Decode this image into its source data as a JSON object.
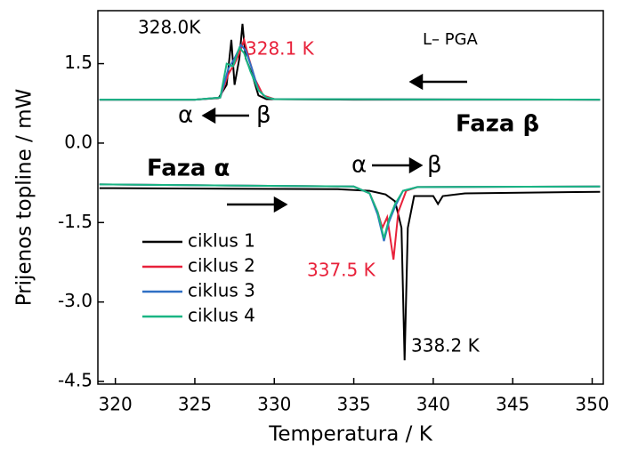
{
  "chart_data": {
    "type": "line",
    "xlabel": "Temperatura  / K",
    "ylabel": "Prijenos topline / mW",
    "xlim": [
      318.9,
      350.7
    ],
    "ylim": [
      -4.55,
      2.5
    ],
    "xticks": [
      320,
      325,
      330,
      335,
      340,
      345,
      350
    ],
    "yticks": [
      1.5,
      {
        "value": 0,
        "label": "0.0"
      },
      -1.5,
      {
        "value": -3,
        "label": "-3.0"
      },
      -4.5
    ],
    "legend": "lower left",
    "series": [
      {
        "name": "ciklus 1",
        "color": "#000000",
        "x": [
          319,
          325,
          326.5,
          327,
          327.3,
          327.5,
          327.8,
          328.0,
          328.2,
          328.6,
          329,
          329.5,
          335,
          350.5,
          null,
          319,
          334,
          336,
          337,
          337.6,
          338,
          338.2,
          338.4,
          338.8,
          340,
          340.3,
          340.6,
          342,
          350.5
        ],
        "values": [
          0.82,
          0.82,
          0.85,
          1.1,
          1.95,
          1.1,
          1.6,
          2.25,
          1.6,
          1.3,
          0.9,
          0.83,
          0.82,
          0.82,
          null,
          -0.85,
          -0.87,
          -0.9,
          -0.97,
          -1.1,
          -1.6,
          -4.1,
          -1.6,
          -1.0,
          -1.0,
          -1.15,
          -1.0,
          -0.95,
          -0.92
        ]
      },
      {
        "name": "ciklus 2",
        "color": "#e8213a",
        "x": [
          319,
          325,
          326.6,
          327.1,
          327.5,
          327.8,
          328.1,
          328.4,
          328.8,
          329.3,
          330,
          350.5,
          null,
          319,
          335,
          336,
          336.5,
          336.8,
          337.1,
          337.5,
          337.8,
          338.3,
          339,
          350.5
        ],
        "values": [
          0.82,
          0.82,
          0.86,
          1.3,
          1.5,
          1.7,
          1.95,
          1.6,
          1.2,
          0.9,
          0.83,
          0.82,
          null,
          -0.78,
          -0.82,
          -0.95,
          -1.3,
          -1.6,
          -1.4,
          -2.2,
          -1.3,
          -0.9,
          -0.83,
          -0.82
        ]
      },
      {
        "name": "ciklus 3",
        "color": "#2f6fc4",
        "x": [
          319,
          325,
          326.6,
          327.1,
          327.5,
          327.9,
          328.2,
          328.6,
          329,
          329.5,
          330,
          350.5,
          null,
          319,
          335,
          336,
          336.5,
          336.9,
          337.2,
          337.6,
          338.1,
          339,
          350.5
        ],
        "values": [
          0.82,
          0.82,
          0.86,
          1.4,
          1.6,
          1.85,
          1.75,
          1.4,
          1.0,
          0.86,
          0.83,
          0.82,
          null,
          -0.78,
          -0.82,
          -0.95,
          -1.35,
          -1.85,
          -1.5,
          -1.2,
          -0.9,
          -0.83,
          -0.82
        ]
      },
      {
        "name": "ciklus 4",
        "color": "#19b583",
        "x": [
          319,
          325,
          326.6,
          327.0,
          327.4,
          327.8,
          328.1,
          328.5,
          329,
          329.5,
          330,
          350.5,
          null,
          319,
          335,
          336,
          336.5,
          336.9,
          337.2,
          337.6,
          338.1,
          339,
          350.5
        ],
        "values": [
          0.82,
          0.82,
          0.86,
          1.5,
          1.45,
          1.8,
          1.7,
          1.35,
          1.0,
          0.86,
          0.83,
          0.82,
          null,
          -0.78,
          -0.82,
          -0.95,
          -1.3,
          -1.8,
          -1.45,
          -1.15,
          -0.9,
          -0.83,
          -0.82
        ]
      }
    ],
    "annotations": [
      {
        "text": "328.0K",
        "color": "#000000"
      },
      {
        "text": "328.1 K",
        "color": "#e8213a"
      },
      {
        "text": "L– PGA",
        "color": "#000000"
      },
      {
        "text": "α",
        "color": "#000000"
      },
      {
        "text": "β",
        "color": "#000000"
      },
      {
        "text": "Faza β",
        "color": "#000000"
      },
      {
        "text": "Faza α",
        "color": "#000000"
      },
      {
        "text": "α",
        "color": "#000000"
      },
      {
        "text": "β",
        "color": "#000000"
      },
      {
        "text": "337.5 K",
        "color": "#e8213a"
      },
      {
        "text": "338.2 K",
        "color": "#000000"
      }
    ]
  }
}
